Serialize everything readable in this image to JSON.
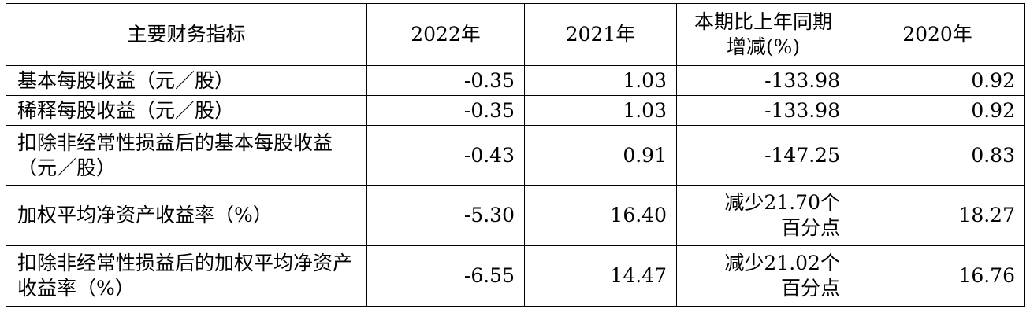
{
  "header": [
    "主要财务指标",
    "2022年",
    "2021年",
    "本期比上年同期增减(%)",
    "2020年"
  ],
  "rows": [
    {
      "label": "基本每股收益（元／股）",
      "y2022": "-0.35",
      "y2021": "1.03",
      "change": "-133.98",
      "y2020": "0.92"
    },
    {
      "label": "稀释每股收益（元／股）",
      "y2022": "-0.35",
      "y2021": "1.03",
      "change": "-133.98",
      "y2020": "0.92"
    },
    {
      "label": "扣除非经常性损益后的基本每股收益（元／股）",
      "y2022": "-0.43",
      "y2021": "0.91",
      "change": "-147.25",
      "y2020": "0.83"
    },
    {
      "label": "加权平均净资产收益率（%）",
      "y2022": "-5.30",
      "y2021": "16.40",
      "change": "减少21.70个百分点",
      "y2020": "18.27"
    },
    {
      "label": "扣除非经常性损益后的加权平均净资产收益率（%）",
      "y2022": "-6.55",
      "y2021": "14.47",
      "change": "减少21.02个百分点",
      "y2020": "16.76"
    }
  ]
}
